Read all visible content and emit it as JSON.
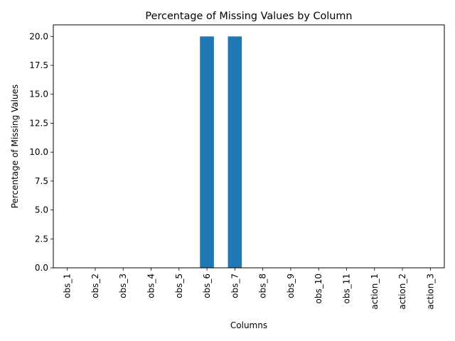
{
  "chart_data": {
    "type": "bar",
    "title": "Percentage of Missing Values by Column",
    "xlabel": "Columns",
    "ylabel": "Percentage of Missing Values",
    "categories": [
      "obs_1",
      "obs_2",
      "obs_3",
      "obs_4",
      "obs_5",
      "obs_6",
      "obs_7",
      "obs_8",
      "obs_9",
      "obs_10",
      "obs_11",
      "action_1",
      "action_2",
      "action_3"
    ],
    "values": [
      0,
      0,
      0,
      0,
      0,
      20,
      20,
      0,
      0,
      0,
      0,
      0,
      0,
      0
    ],
    "ylim": [
      0,
      21
    ],
    "yticks": [
      "0.0",
      "2.5",
      "5.0",
      "7.5",
      "10.0",
      "12.5",
      "15.0",
      "17.5",
      "20.0"
    ],
    "grid": false,
    "bar_color": "#1f77b4"
  }
}
